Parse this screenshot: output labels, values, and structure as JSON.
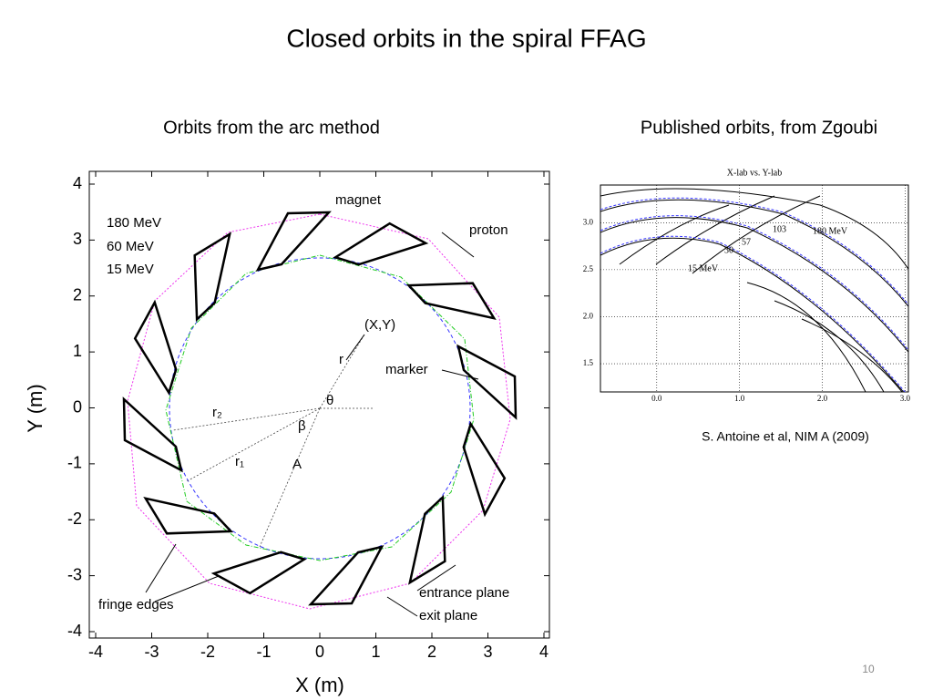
{
  "slide": {
    "title": "Closed orbits in the spiral FFAG",
    "page_number": "10"
  },
  "figures": [
    {
      "caption": "Orbits from the arc method",
      "xlabel": "X (m)",
      "ylabel": "Y (m)",
      "xlim": [
        -4,
        4
      ],
      "ylim": [
        -4,
        4
      ],
      "xticks": [
        -4,
        -3,
        -2,
        -1,
        0,
        1,
        2,
        3,
        4
      ],
      "yticks": [
        -4,
        -3,
        -2,
        -1,
        0,
        1,
        2,
        3,
        4
      ],
      "annotations": [
        "magnet",
        "proton",
        "180 MeV",
        "60 MeV",
        "15 MeV",
        "(X,Y)",
        "r",
        "θ",
        "r₂",
        "β",
        "r₁",
        "A",
        "marker",
        "fringe edges",
        "entrance plane",
        "exit plane"
      ]
    },
    {
      "caption": "Published orbits, from Zgoubi",
      "title": "X-lab  vs.  Y-lab",
      "xlim": [
        -0.68,
        3.04
      ],
      "ylim": [
        1.2,
        3.4
      ],
      "xticks": [
        {
          "value": 0,
          "label": "0.0"
        },
        {
          "value": 1,
          "label": "1.0"
        },
        {
          "value": 2,
          "label": "2.0"
        },
        {
          "value": 3,
          "label": "3.0"
        }
      ],
      "yticks": [
        1.5,
        {
          "value": 2,
          "label": "2.0"
        },
        2.5,
        {
          "value": 3,
          "label": "3.0"
        }
      ],
      "annotations": [
        "15 MeV",
        "30",
        "57",
        "103",
        "180 MeV"
      ]
    }
  ],
  "citation": "S. Antoine et al, NIM A (2009)"
}
